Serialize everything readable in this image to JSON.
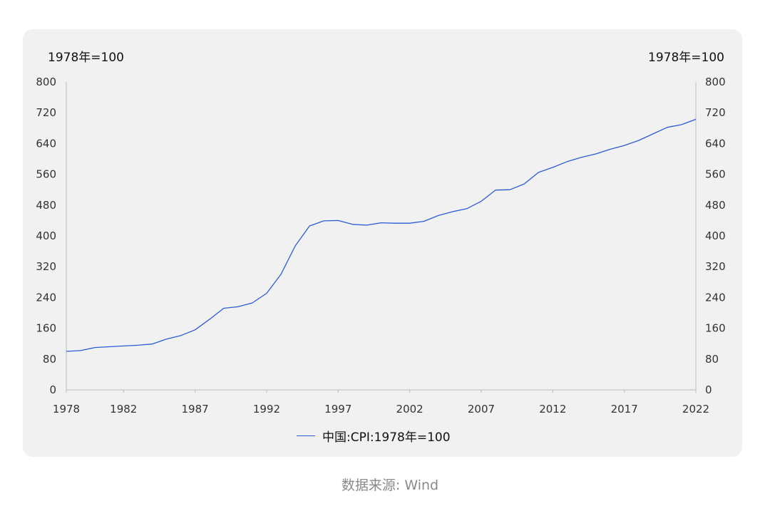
{
  "unit_left": "1978年=100",
  "unit_right": "1978年=100",
  "legend": {
    "label": "中国:CPI:1978年=100",
    "color": "#2a5bd7"
  },
  "source": "数据来源: Wind",
  "chart_data": {
    "type": "line",
    "title": "",
    "xlabel": "",
    "ylabel": "1978年=100",
    "ylim": [
      0,
      800
    ],
    "xlim": [
      1978,
      2022
    ],
    "yticks": [
      0,
      80,
      160,
      240,
      320,
      400,
      480,
      560,
      640,
      720,
      800
    ],
    "xticks": [
      1978,
      1982,
      1987,
      1992,
      1997,
      2002,
      2007,
      2012,
      2017,
      2022
    ],
    "grid": false,
    "legend_position": "bottom",
    "series": [
      {
        "name": "中国:CPI:1978年=100",
        "color": "#2a5bd7",
        "x": [
          1978,
          1979,
          1980,
          1981,
          1982,
          1983,
          1984,
          1985,
          1986,
          1987,
          1988,
          1989,
          1990,
          1991,
          1992,
          1993,
          1994,
          1995,
          1996,
          1997,
          1998,
          1999,
          2000,
          2001,
          2002,
          2003,
          2004,
          2005,
          2006,
          2007,
          2008,
          2009,
          2010,
          2011,
          2012,
          2013,
          2014,
          2015,
          2016,
          2017,
          2018,
          2019,
          2020,
          2021,
          2022
        ],
        "values": [
          100,
          102,
          110,
          112,
          114,
          116,
          119,
          132,
          141,
          156,
          183,
          212,
          216,
          226,
          251,
          300,
          374,
          426,
          439,
          440,
          430,
          428,
          434,
          433,
          433,
          438,
          453,
          463,
          471,
          490,
          519,
          520,
          535,
          565,
          578,
          593,
          604,
          613,
          625,
          635,
          648,
          665,
          682,
          689,
          703
        ]
      }
    ]
  }
}
